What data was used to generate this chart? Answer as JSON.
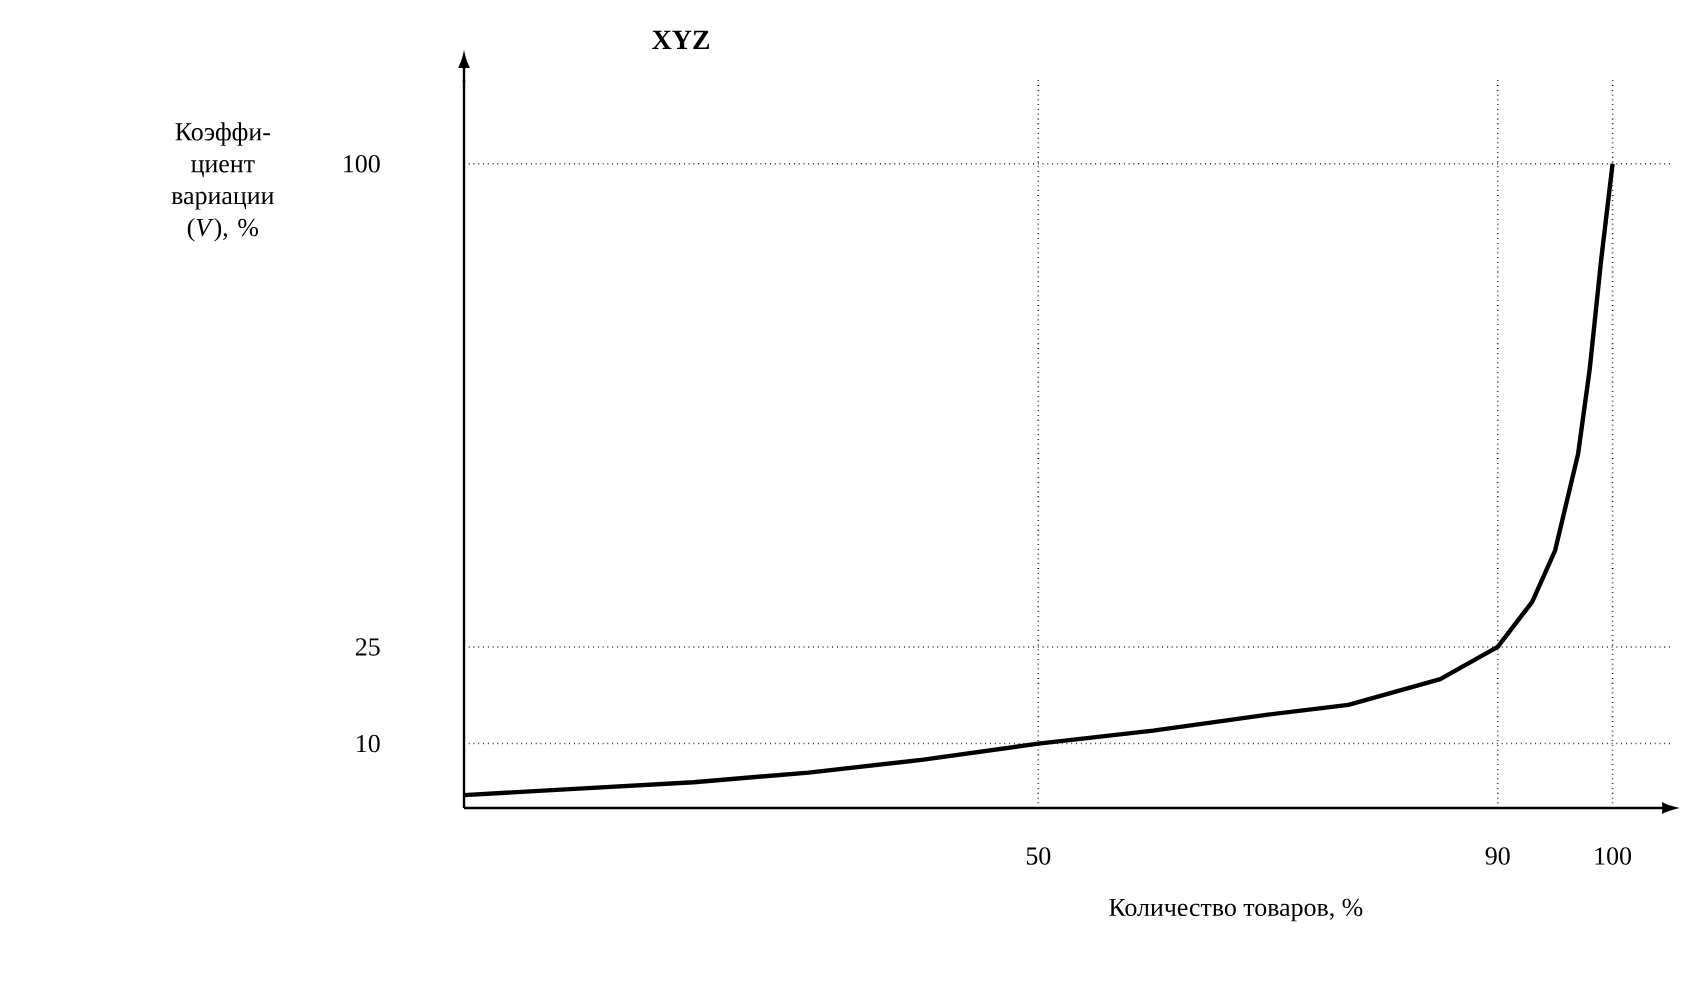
{
  "chart_data": {
    "type": "line",
    "title": "XYZ",
    "xlabel": "Количество товаров, %",
    "ylabel": "Коэффи-циент вариации (*V*), %",
    "x": [
      0,
      10,
      20,
      30,
      40,
      50,
      60,
      70,
      77,
      85,
      90,
      93,
      95,
      97,
      98,
      99,
      100
    ],
    "values": [
      2,
      3,
      4,
      5.5,
      7.5,
      10,
      12,
      14.5,
      16,
      20,
      25,
      32,
      40,
      55,
      68,
      85,
      100
    ],
    "color": "#000000",
    "xlim": [
      0,
      105
    ],
    "ylim": [
      0,
      113
    ],
    "xticks": [
      50,
      90,
      100
    ],
    "yticks": [
      10,
      25,
      100
    ],
    "grid": true
  }
}
